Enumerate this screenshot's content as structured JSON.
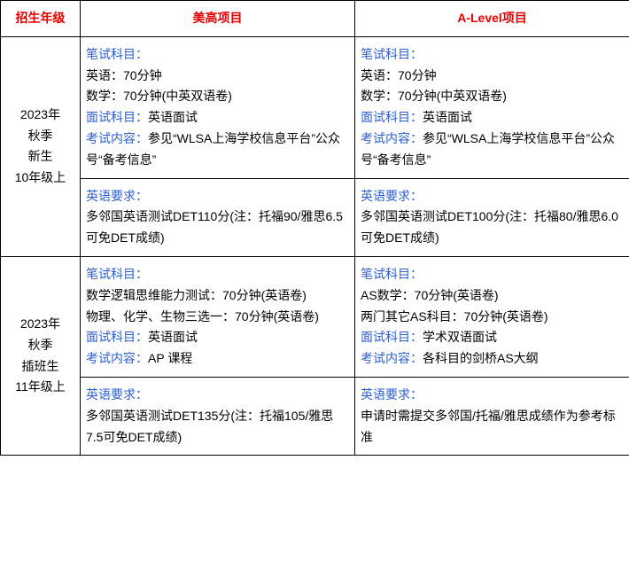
{
  "colors": {
    "header_red": "#e60000",
    "label_blue": "#2d5fd0",
    "body_text": "#000000",
    "border": "#000000"
  },
  "headers": {
    "grade": "招生年级",
    "program_us": "美高项目",
    "program_alevel": "A-Level项目"
  },
  "rows": [
    {
      "grade_label": "2023年\n秋季\n新生\n10年级上",
      "us_exam": {
        "written_label": "笔试科目：",
        "written_lines": [
          "英语：70分钟",
          "数学：70分钟(中英双语卷)"
        ],
        "interview_label": "面试科目：",
        "interview_value": "英语面试",
        "content_label": "考试内容：",
        "content_value": "参见“WLSA上海学校信息平台”公众号“备考信息”"
      },
      "alevel_exam": {
        "written_label": "笔试科目：",
        "written_lines": [
          "英语：70分钟",
          "数学：70分钟(中英双语卷)"
        ],
        "interview_label": "面试科目：",
        "interview_value": "英语面试",
        "content_label": "考试内容：",
        "content_value": "参见“WLSA上海学校信息平台”公众号“备考信息”"
      },
      "us_english": {
        "req_label": "英语要求：",
        "req_value": "多邻国英语测试DET110分(注：托福90/雅思6.5可免DET成绩)"
      },
      "alevel_english": {
        "req_label": "英语要求：",
        "req_value": "多邻国英语测试DET100分(注：托福80/雅思6.0可免DET成绩)"
      }
    },
    {
      "grade_label": "2023年\n秋季\n插班生\n11年级上",
      "us_exam": {
        "written_label": "笔试科目：",
        "written_lines": [
          "数学逻辑思维能力测试：70分钟(英语卷)",
          "物理、化学、生物三选一：70分钟(英语卷)"
        ],
        "interview_label": "面试科目：",
        "interview_value": "英语面试",
        "content_label": "考试内容：",
        "content_value": "AP 课程"
      },
      "alevel_exam": {
        "written_label": "笔试科目：",
        "written_lines": [
          "AS数学：70分钟(英语卷)",
          "两门其它AS科目：70分钟(英语卷)"
        ],
        "interview_label": "面试科目：",
        "interview_value": "学术双语面试",
        "content_label": "考试内容：",
        "content_value": "各科目的剑桥AS大纲"
      },
      "us_english": {
        "req_label": "英语要求：",
        "req_value": "多邻国英语测试DET135分(注：托福105/雅思7.5可免DET成绩)"
      },
      "alevel_english": {
        "req_label": "英语要求：",
        "req_value": "申请时需提交多邻国/托福/雅思成绩作为参考标准"
      }
    }
  ]
}
